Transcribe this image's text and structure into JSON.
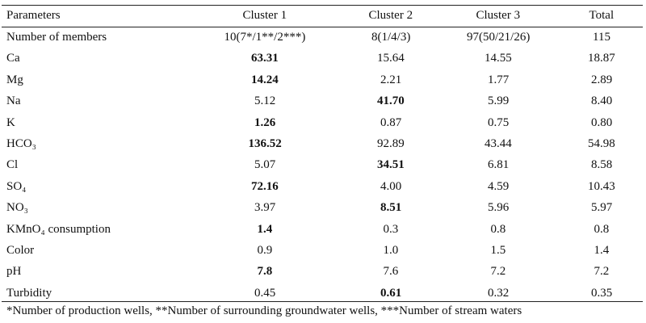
{
  "table": {
    "header": [
      "Parameters",
      "Cluster 1",
      "Cluster 2",
      "Cluster 3",
      "Total"
    ],
    "rows": [
      {
        "cells": [
          "Number of members",
          "10(7*/1**/2***)",
          "8(1/4/3)",
          "97(50/21/26)",
          "115"
        ]
      },
      {
        "cells": [
          "Ca",
          "63.31",
          "15.64",
          "14.55",
          "18.87"
        ],
        "bold": 1
      },
      {
        "cells": [
          "Mg",
          "14.24",
          "2.21",
          "1.77",
          "2.89"
        ],
        "bold": 1
      },
      {
        "cells": [
          "Na",
          "5.12",
          "41.70",
          "5.99",
          "8.40"
        ],
        "bold": 2
      },
      {
        "cells": [
          "K",
          "1.26",
          "0.87",
          "0.75",
          "0.80"
        ],
        "bold": 1
      },
      {
        "cells": [
          "HCO₃",
          "136.52",
          "92.89",
          "43.44",
          "54.98"
        ],
        "bold": 1
      },
      {
        "cells": [
          "Cl",
          "5.07",
          "34.51",
          "6.81",
          "8.58"
        ],
        "bold": 2
      },
      {
        "cells": [
          "SO₄",
          "72.16",
          "4.00",
          "4.59",
          "10.43"
        ],
        "bold": 1
      },
      {
        "cells": [
          "NO₃",
          "3.97",
          "8.51",
          "5.96",
          "5.97"
        ],
        "bold": 2
      },
      {
        "cells": [
          "KMnO₄ consumption",
          "1.4",
          "0.3",
          "0.8",
          "0.8"
        ],
        "bold": 1
      },
      {
        "cells": [
          "Color",
          "0.9",
          "1.0",
          "1.5",
          "1.4"
        ]
      },
      {
        "cells": [
          "pH",
          "7.8",
          "7.6",
          "7.2",
          "7.2"
        ],
        "bold": 1
      },
      {
        "cells": [
          "Turbidity",
          "0.45",
          "0.61",
          "0.32",
          "0.35"
        ],
        "bold": 2
      }
    ],
    "footnote": "*Number of production wells, **Number of surrounding groundwater wells, ***Number of stream waters"
  }
}
